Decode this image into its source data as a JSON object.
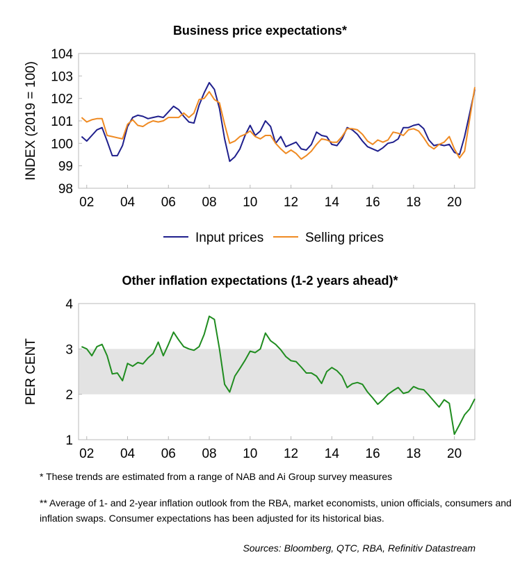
{
  "chart_data": [
    {
      "type": "line",
      "title": "Business price expectations*",
      "ylabel": "INDEX (2019 = 100)",
      "xlabel": "",
      "ylim": [
        98,
        104
      ],
      "yticks": [
        98,
        99,
        100,
        101,
        102,
        103,
        104
      ],
      "xlim": [
        2001.6,
        2021.0
      ],
      "xtick_values": [
        2002,
        2004,
        2006,
        2008,
        2010,
        2012,
        2014,
        2016,
        2018,
        2020
      ],
      "xtick_labels": [
        "02",
        "04",
        "06",
        "08",
        "10",
        "12",
        "14",
        "16",
        "18",
        "20"
      ],
      "grid": false,
      "legend": "bottom",
      "series": [
        {
          "name": "Input prices",
          "color": "#1f1f8c",
          "points": [
            [
              2001.75,
              100.3
            ],
            [
              2002.0,
              100.1
            ],
            [
              2002.25,
              100.35
            ],
            [
              2002.5,
              100.6
            ],
            [
              2002.75,
              100.7
            ],
            [
              2003.0,
              100.1
            ],
            [
              2003.25,
              99.45
            ],
            [
              2003.5,
              99.45
            ],
            [
              2003.75,
              99.9
            ],
            [
              2004.0,
              100.75
            ],
            [
              2004.25,
              101.15
            ],
            [
              2004.5,
              101.25
            ],
            [
              2004.75,
              101.2
            ],
            [
              2005.0,
              101.1
            ],
            [
              2005.25,
              101.15
            ],
            [
              2005.5,
              101.2
            ],
            [
              2005.75,
              101.15
            ],
            [
              2006.0,
              101.4
            ],
            [
              2006.25,
              101.65
            ],
            [
              2006.5,
              101.5
            ],
            [
              2006.75,
              101.2
            ],
            [
              2007.0,
              100.95
            ],
            [
              2007.25,
              100.9
            ],
            [
              2007.5,
              101.7
            ],
            [
              2007.75,
              102.25
            ],
            [
              2008.0,
              102.7
            ],
            [
              2008.25,
              102.4
            ],
            [
              2008.5,
              101.55
            ],
            [
              2008.75,
              100.2
            ],
            [
              2009.0,
              99.2
            ],
            [
              2009.25,
              99.4
            ],
            [
              2009.5,
              99.75
            ],
            [
              2009.75,
              100.35
            ],
            [
              2010.0,
              100.8
            ],
            [
              2010.25,
              100.35
            ],
            [
              2010.5,
              100.55
            ],
            [
              2010.75,
              101.0
            ],
            [
              2011.0,
              100.75
            ],
            [
              2011.25,
              100.0
            ],
            [
              2011.5,
              100.3
            ],
            [
              2011.75,
              99.85
            ],
            [
              2012.0,
              99.95
            ],
            [
              2012.25,
              100.05
            ],
            [
              2012.5,
              99.75
            ],
            [
              2012.75,
              99.7
            ],
            [
              2013.0,
              99.95
            ],
            [
              2013.25,
              100.5
            ],
            [
              2013.5,
              100.35
            ],
            [
              2013.75,
              100.3
            ],
            [
              2014.0,
              99.95
            ],
            [
              2014.25,
              99.9
            ],
            [
              2014.5,
              100.2
            ],
            [
              2014.75,
              100.7
            ],
            [
              2015.0,
              100.6
            ],
            [
              2015.25,
              100.4
            ],
            [
              2015.5,
              100.1
            ],
            [
              2015.75,
              99.85
            ],
            [
              2016.0,
              99.75
            ],
            [
              2016.25,
              99.65
            ],
            [
              2016.5,
              99.8
            ],
            [
              2016.75,
              100.0
            ],
            [
              2017.0,
              100.05
            ],
            [
              2017.25,
              100.2
            ],
            [
              2017.5,
              100.7
            ],
            [
              2017.75,
              100.7
            ],
            [
              2018.0,
              100.8
            ],
            [
              2018.25,
              100.85
            ],
            [
              2018.5,
              100.65
            ],
            [
              2018.75,
              100.15
            ],
            [
              2019.0,
              99.9
            ],
            [
              2019.25,
              99.95
            ],
            [
              2019.5,
              99.9
            ],
            [
              2019.75,
              99.95
            ],
            [
              2020.0,
              99.6
            ],
            [
              2020.25,
              99.5
            ],
            [
              2020.5,
              100.3
            ],
            [
              2020.75,
              101.35
            ],
            [
              2021.0,
              102.4
            ]
          ]
        },
        {
          "name": "Selling prices",
          "color": "#ef8a22",
          "points": [
            [
              2001.75,
              101.15
            ],
            [
              2002.0,
              100.95
            ],
            [
              2002.25,
              101.05
            ],
            [
              2002.5,
              101.1
            ],
            [
              2002.75,
              101.1
            ],
            [
              2003.0,
              100.35
            ],
            [
              2003.25,
              100.3
            ],
            [
              2003.5,
              100.25
            ],
            [
              2003.75,
              100.2
            ],
            [
              2004.0,
              100.85
            ],
            [
              2004.25,
              101.05
            ],
            [
              2004.5,
              100.8
            ],
            [
              2004.75,
              100.75
            ],
            [
              2005.0,
              100.9
            ],
            [
              2005.25,
              101.0
            ],
            [
              2005.5,
              100.95
            ],
            [
              2005.75,
              101.0
            ],
            [
              2006.0,
              101.15
            ],
            [
              2006.25,
              101.15
            ],
            [
              2006.5,
              101.15
            ],
            [
              2006.75,
              101.35
            ],
            [
              2007.0,
              101.15
            ],
            [
              2007.25,
              101.35
            ],
            [
              2007.5,
              101.95
            ],
            [
              2007.75,
              102.0
            ],
            [
              2008.0,
              102.3
            ],
            [
              2008.25,
              101.95
            ],
            [
              2008.5,
              101.8
            ],
            [
              2008.75,
              100.85
            ],
            [
              2009.0,
              100.0
            ],
            [
              2009.25,
              100.1
            ],
            [
              2009.5,
              100.3
            ],
            [
              2009.75,
              100.4
            ],
            [
              2010.0,
              100.55
            ],
            [
              2010.25,
              100.3
            ],
            [
              2010.5,
              100.2
            ],
            [
              2010.75,
              100.35
            ],
            [
              2011.0,
              100.35
            ],
            [
              2011.25,
              100.0
            ],
            [
              2011.5,
              99.75
            ],
            [
              2011.75,
              99.55
            ],
            [
              2012.0,
              99.7
            ],
            [
              2012.25,
              99.55
            ],
            [
              2012.5,
              99.3
            ],
            [
              2012.75,
              99.45
            ],
            [
              2013.0,
              99.65
            ],
            [
              2013.25,
              99.95
            ],
            [
              2013.5,
              100.2
            ],
            [
              2013.75,
              100.15
            ],
            [
              2014.0,
              100.05
            ],
            [
              2014.25,
              100.05
            ],
            [
              2014.5,
              100.3
            ],
            [
              2014.75,
              100.65
            ],
            [
              2015.0,
              100.65
            ],
            [
              2015.25,
              100.6
            ],
            [
              2015.5,
              100.4
            ],
            [
              2015.75,
              100.1
            ],
            [
              2016.0,
              99.95
            ],
            [
              2016.25,
              100.15
            ],
            [
              2016.5,
              100.05
            ],
            [
              2016.75,
              100.15
            ],
            [
              2017.0,
              100.5
            ],
            [
              2017.25,
              100.45
            ],
            [
              2017.5,
              100.35
            ],
            [
              2017.75,
              100.6
            ],
            [
              2018.0,
              100.65
            ],
            [
              2018.25,
              100.55
            ],
            [
              2018.5,
              100.25
            ],
            [
              2018.75,
              99.9
            ],
            [
              2019.0,
              99.75
            ],
            [
              2019.25,
              99.95
            ],
            [
              2019.5,
              100.05
            ],
            [
              2019.75,
              100.3
            ],
            [
              2020.0,
              99.75
            ],
            [
              2020.25,
              99.35
            ],
            [
              2020.5,
              99.65
            ],
            [
              2020.75,
              101.1
            ],
            [
              2021.0,
              102.5
            ]
          ]
        }
      ]
    },
    {
      "type": "line",
      "title": "Other inflation expectations (1-2 years ahead)*",
      "ylabel": "PER CENT",
      "xlabel": "",
      "ylim": [
        1,
        4
      ],
      "yticks": [
        1,
        2,
        3,
        4
      ],
      "xlim": [
        2001.6,
        2021.0
      ],
      "xtick_values": [
        2002,
        2004,
        2006,
        2008,
        2010,
        2012,
        2014,
        2016,
        2018,
        2020
      ],
      "xtick_labels": [
        "02",
        "04",
        "06",
        "08",
        "10",
        "12",
        "14",
        "16",
        "18",
        "20"
      ],
      "grid": false,
      "shaded_band": [
        2,
        3
      ],
      "band_color": "#e3e3e3",
      "series": [
        {
          "color": "#1f8c1f",
          "points": [
            [
              2001.75,
              3.05
            ],
            [
              2002.0,
              3.0
            ],
            [
              2002.25,
              2.85
            ],
            [
              2002.5,
              3.05
            ],
            [
              2002.75,
              3.1
            ],
            [
              2003.0,
              2.85
            ],
            [
              2003.25,
              2.45
            ],
            [
              2003.5,
              2.47
            ],
            [
              2003.75,
              2.3
            ],
            [
              2004.0,
              2.68
            ],
            [
              2004.25,
              2.62
            ],
            [
              2004.5,
              2.7
            ],
            [
              2004.75,
              2.67
            ],
            [
              2005.0,
              2.8
            ],
            [
              2005.25,
              2.9
            ],
            [
              2005.5,
              3.15
            ],
            [
              2005.75,
              2.85
            ],
            [
              2006.0,
              3.1
            ],
            [
              2006.25,
              3.37
            ],
            [
              2006.5,
              3.2
            ],
            [
              2006.75,
              3.05
            ],
            [
              2007.0,
              3.0
            ],
            [
              2007.25,
              2.97
            ],
            [
              2007.5,
              3.05
            ],
            [
              2007.75,
              3.32
            ],
            [
              2008.0,
              3.72
            ],
            [
              2008.25,
              3.65
            ],
            [
              2008.5,
              3.0
            ],
            [
              2008.75,
              2.22
            ],
            [
              2009.0,
              2.05
            ],
            [
              2009.25,
              2.4
            ],
            [
              2009.5,
              2.57
            ],
            [
              2009.75,
              2.75
            ],
            [
              2010.0,
              2.95
            ],
            [
              2010.25,
              2.92
            ],
            [
              2010.5,
              3.0
            ],
            [
              2010.75,
              3.35
            ],
            [
              2011.0,
              3.18
            ],
            [
              2011.25,
              3.1
            ],
            [
              2011.5,
              2.98
            ],
            [
              2011.75,
              2.83
            ],
            [
              2012.0,
              2.74
            ],
            [
              2012.25,
              2.72
            ],
            [
              2012.5,
              2.6
            ],
            [
              2012.75,
              2.47
            ],
            [
              2013.0,
              2.47
            ],
            [
              2013.25,
              2.4
            ],
            [
              2013.5,
              2.24
            ],
            [
              2013.75,
              2.5
            ],
            [
              2014.0,
              2.59
            ],
            [
              2014.25,
              2.52
            ],
            [
              2014.5,
              2.4
            ],
            [
              2014.75,
              2.15
            ],
            [
              2015.0,
              2.23
            ],
            [
              2015.25,
              2.26
            ],
            [
              2015.5,
              2.22
            ],
            [
              2015.75,
              2.05
            ],
            [
              2016.0,
              1.92
            ],
            [
              2016.25,
              1.78
            ],
            [
              2016.5,
              1.88
            ],
            [
              2016.75,
              2.0
            ],
            [
              2017.0,
              2.08
            ],
            [
              2017.25,
              2.15
            ],
            [
              2017.5,
              2.02
            ],
            [
              2017.75,
              2.05
            ],
            [
              2018.0,
              2.17
            ],
            [
              2018.25,
              2.12
            ],
            [
              2018.5,
              2.1
            ],
            [
              2018.75,
              1.98
            ],
            [
              2019.0,
              1.85
            ],
            [
              2019.25,
              1.72
            ],
            [
              2019.5,
              1.88
            ],
            [
              2019.75,
              1.8
            ],
            [
              2020.0,
              1.12
            ],
            [
              2020.25,
              1.33
            ],
            [
              2020.5,
              1.55
            ],
            [
              2020.75,
              1.68
            ],
            [
              2021.0,
              1.9
            ]
          ]
        }
      ]
    }
  ],
  "footnotes": {
    "note1": "*   These trends are estimated from a range of NAB and Ai Group survey measures",
    "note2": "** Average of 1- and 2-year inflation outlook from the RBA, market economists, union officials, consumers and inflation swaps. Consumer expectations has been adjusted for its historical bias.",
    "sources": "Sources: Bloomberg, QTC, RBA, Refinitiv Datastream"
  }
}
